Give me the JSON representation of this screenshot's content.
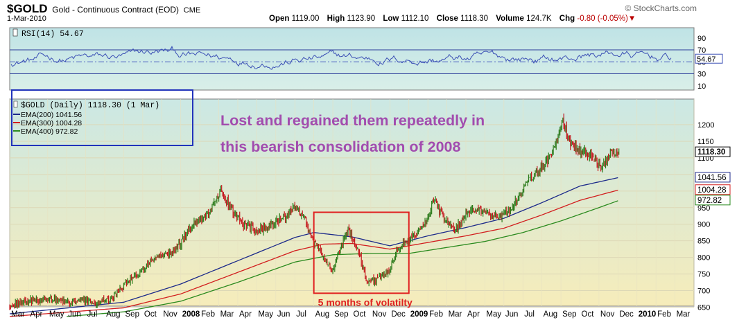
{
  "header": {
    "symbol": "$GOLD",
    "description": "Gold - Continuous Contract (EOD)",
    "exchange": "CME",
    "date": "1-Mar-2010",
    "brand": "© StockCharts.com",
    "open_label": "Open",
    "open": "1119.00",
    "high_label": "High",
    "high": "1123.90",
    "low_label": "Low",
    "low": "1112.10",
    "close_label": "Close",
    "close": "1118.30",
    "volume_label": "Volume",
    "volume": "124.7K",
    "chg_label": "Chg",
    "chg": "-0.80 (-0.05%)",
    "chg_arrow": "▼"
  },
  "colors": {
    "panel_bg_top": "#cbe8e4",
    "panel_bg_bottom": "#f6ecba",
    "rsi_line": "#3b4fb5",
    "ema200": "#1c2a8a",
    "ema300": "#d21e1e",
    "ema400": "#2a8a1e",
    "up_bar": "#2a7a1a",
    "down_bar": "#c4161c",
    "annotation_text": "#a24cae",
    "highlight_box": "#e02020",
    "legend_box": "#2233bb"
  },
  "chart_data": [
    {
      "type": "line",
      "title": "RSI(14) 54.67",
      "series": [
        {
          "name": "RSI(14)",
          "last": 54.67
        }
      ],
      "y_ticks": [
        90,
        70,
        50,
        30,
        10
      ],
      "reference_lines": [
        70,
        50,
        30
      ],
      "last_label": "54.67"
    },
    {
      "type": "candlestick",
      "legend": {
        "price": "$GOLD (Daily) 1118.30 (1 Mar)",
        "ema200": "EMA(200) 1041.56",
        "ema300": "EMA(300) 1004.28",
        "ema400": "EMA(400) 972.82"
      },
      "y_ticks": [
        1200,
        1150,
        1100,
        1050,
        1000,
        950,
        900,
        850,
        800,
        750,
        700,
        650
      ],
      "ylim": [
        620,
        1250
      ],
      "x_ticks": [
        "Mar",
        "Apr",
        "May",
        "Jun",
        "Jul",
        "Aug",
        "Sep",
        "Oct",
        "Nov",
        "2008",
        "Feb",
        "Mar",
        "Apr",
        "May",
        "Jun",
        "Jul",
        "Aug",
        "Sep",
        "Oct",
        "Nov",
        "Dec",
        "2009",
        "Feb",
        "Mar",
        "Apr",
        "May",
        "Jun",
        "Jul",
        "Aug",
        "Sep",
        "Oct",
        "Nov",
        "Dec",
        "2010",
        "Feb",
        "Mar"
      ],
      "x_ticks_bold": [
        "2008",
        "2009",
        "2010"
      ],
      "price_anchors": [
        {
          "m": 0.0,
          "v": 655
        },
        {
          "m": 1.0,
          "v": 668
        },
        {
          "m": 2.0,
          "v": 675
        },
        {
          "m": 3.0,
          "v": 665
        },
        {
          "m": 4.0,
          "v": 668
        },
        {
          "m": 5.0,
          "v": 665
        },
        {
          "m": 5.5,
          "v": 685
        },
        {
          "m": 6.2,
          "v": 730
        },
        {
          "m": 7.0,
          "v": 760
        },
        {
          "m": 7.6,
          "v": 805
        },
        {
          "m": 8.4,
          "v": 810
        },
        {
          "m": 9.0,
          "v": 845
        },
        {
          "m": 9.6,
          "v": 900
        },
        {
          "m": 10.4,
          "v": 930
        },
        {
          "m": 11.1,
          "v": 1000
        },
        {
          "m": 11.6,
          "v": 950
        },
        {
          "m": 12.3,
          "v": 900
        },
        {
          "m": 13.0,
          "v": 880
        },
        {
          "m": 13.8,
          "v": 900
        },
        {
          "m": 14.5,
          "v": 920
        },
        {
          "m": 15.0,
          "v": 955
        },
        {
          "m": 15.5,
          "v": 920
        },
        {
          "m": 16.0,
          "v": 845
        },
        {
          "m": 16.5,
          "v": 800
        },
        {
          "m": 17.0,
          "v": 760
        },
        {
          "m": 17.4,
          "v": 830
        },
        {
          "m": 17.8,
          "v": 880
        },
        {
          "m": 18.3,
          "v": 830
        },
        {
          "m": 18.8,
          "v": 725
        },
        {
          "m": 19.4,
          "v": 735
        },
        {
          "m": 20.0,
          "v": 760
        },
        {
          "m": 20.4,
          "v": 830
        },
        {
          "m": 21.0,
          "v": 850
        },
        {
          "m": 21.6,
          "v": 880
        },
        {
          "m": 22.0,
          "v": 920
        },
        {
          "m": 22.3,
          "v": 975
        },
        {
          "m": 22.8,
          "v": 920
        },
        {
          "m": 23.4,
          "v": 880
        },
        {
          "m": 24.0,
          "v": 930
        },
        {
          "m": 24.6,
          "v": 945
        },
        {
          "m": 25.2,
          "v": 930
        },
        {
          "m": 25.8,
          "v": 925
        },
        {
          "m": 26.4,
          "v": 945
        },
        {
          "m": 26.9,
          "v": 995
        },
        {
          "m": 27.4,
          "v": 1040
        },
        {
          "m": 27.9,
          "v": 1070
        },
        {
          "m": 28.4,
          "v": 1100
        },
        {
          "m": 28.8,
          "v": 1150
        },
        {
          "m": 29.1,
          "v": 1215
        },
        {
          "m": 29.5,
          "v": 1145
        },
        {
          "m": 30.0,
          "v": 1120
        },
        {
          "m": 30.6,
          "v": 1110
        },
        {
          "m": 31.1,
          "v": 1070
        },
        {
          "m": 31.6,
          "v": 1110
        },
        {
          "m": 32.1,
          "v": 1118
        }
      ],
      "ema200_anchors": [
        {
          "m": 0,
          "v": 630
        },
        {
          "m": 6,
          "v": 665
        },
        {
          "m": 9,
          "v": 720
        },
        {
          "m": 12,
          "v": 790
        },
        {
          "m": 15,
          "v": 860
        },
        {
          "m": 16,
          "v": 875
        },
        {
          "m": 18,
          "v": 862
        },
        {
          "m": 20,
          "v": 835
        },
        {
          "m": 22,
          "v": 865
        },
        {
          "m": 24,
          "v": 890
        },
        {
          "m": 26,
          "v": 918
        },
        {
          "m": 28,
          "v": 965
        },
        {
          "m": 30,
          "v": 1015
        },
        {
          "m": 32.1,
          "v": 1041.56
        }
      ],
      "ema300_anchors": [
        {
          "m": 0,
          "v": 622
        },
        {
          "m": 6,
          "v": 648
        },
        {
          "m": 9,
          "v": 690
        },
        {
          "m": 12,
          "v": 755
        },
        {
          "m": 15,
          "v": 820
        },
        {
          "m": 16.5,
          "v": 840
        },
        {
          "m": 18,
          "v": 842
        },
        {
          "m": 20,
          "v": 825
        },
        {
          "m": 22,
          "v": 845
        },
        {
          "m": 24,
          "v": 865
        },
        {
          "m": 26,
          "v": 888
        },
        {
          "m": 28,
          "v": 928
        },
        {
          "m": 30,
          "v": 972
        },
        {
          "m": 32.1,
          "v": 1004.28
        }
      ],
      "ema400_anchors": [
        {
          "m": 3,
          "v": 622
        },
        {
          "m": 6,
          "v": 636
        },
        {
          "m": 9,
          "v": 668
        },
        {
          "m": 12,
          "v": 725
        },
        {
          "m": 15,
          "v": 786
        },
        {
          "m": 17,
          "v": 808
        },
        {
          "m": 19,
          "v": 812
        },
        {
          "m": 21,
          "v": 812
        },
        {
          "m": 23,
          "v": 830
        },
        {
          "m": 25,
          "v": 848
        },
        {
          "m": 27,
          "v": 875
        },
        {
          "m": 29,
          "v": 910
        },
        {
          "m": 31,
          "v": 950
        },
        {
          "m": 32.1,
          "v": 972.82
        }
      ],
      "value_tags": [
        {
          "label": "1118.30",
          "value": 1118.3,
          "bold": true
        },
        {
          "label": "1041.56",
          "value": 1041.56
        },
        {
          "label": "1004.28",
          "value": 1004.28
        },
        {
          "label": "972.82",
          "value": 972.82
        }
      ],
      "annotations": {
        "main_text_line1": "Lost and regained them repeatedly in",
        "main_text_line2": "this bearish consolidation of 2008",
        "box_caption": "5 months of volatilty",
        "box_month_range": [
          16.0,
          21.0
        ],
        "box_value_range": [
          692,
          936
        ]
      }
    }
  ]
}
